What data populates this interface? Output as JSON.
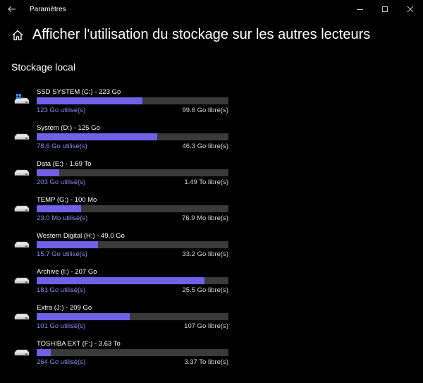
{
  "window": {
    "title": "Paramètres",
    "back_icon": "back-arrow-icon",
    "controls": [
      "minimize-icon",
      "maximize-icon",
      "close-icon"
    ]
  },
  "header": {
    "home_icon": "home-icon",
    "title": "Afficher l'utilisation du stockage sur les autres lecteurs"
  },
  "section": {
    "title": "Stockage local"
  },
  "colors": {
    "bar_fill": "#7160e8",
    "bar_track": "#3a3a3a",
    "used_text": "#8f86f2"
  },
  "drives": [
    {
      "name": "SSD SYSTEM (C:) - 223 Go",
      "used": "123 Go utilisé(s)",
      "free": "99.6 Go libre(s)",
      "fraction": 0.552,
      "icon": "windows-drive-icon"
    },
    {
      "name": "System (D:) - 125 Go",
      "used": "78.6 Go utilisé(s)",
      "free": "46.3 Go libre(s)",
      "fraction": 0.629,
      "icon": "hard-drive-icon"
    },
    {
      "name": "Data (E:) - 1.69 To",
      "used": "203 Go utilisé(s)",
      "free": "1.49 To libre(s)",
      "fraction": 0.117,
      "icon": "hard-drive-icon"
    },
    {
      "name": "TEMP (G:) - 100 Mo",
      "used": "23.0 Mo utilisé(s)",
      "free": "76.9 Mo libre(s)",
      "fraction": 0.23,
      "icon": "hard-drive-icon"
    },
    {
      "name": "Western Digital (H:) - 49.0 Go",
      "used": "15.7 Go utilisé(s)",
      "free": "33.2 Go libre(s)",
      "fraction": 0.321,
      "icon": "hard-drive-icon"
    },
    {
      "name": "Archive (I:) - 207 Go",
      "used": "181 Go utilisé(s)",
      "free": "25.5 Go libre(s)",
      "fraction": 0.876,
      "icon": "hard-drive-icon"
    },
    {
      "name": "Extra (J:) - 209 Go",
      "used": "101 Go utilisé(s)",
      "free": "107 Go libre(s)",
      "fraction": 0.485,
      "icon": "hard-drive-icon"
    },
    {
      "name": "TOSHIBA EXT (F:) - 3.63 To",
      "used": "264 Go utilisé(s)",
      "free": "3.37 To libre(s)",
      "fraction": 0.072,
      "icon": "hard-drive-icon"
    }
  ]
}
